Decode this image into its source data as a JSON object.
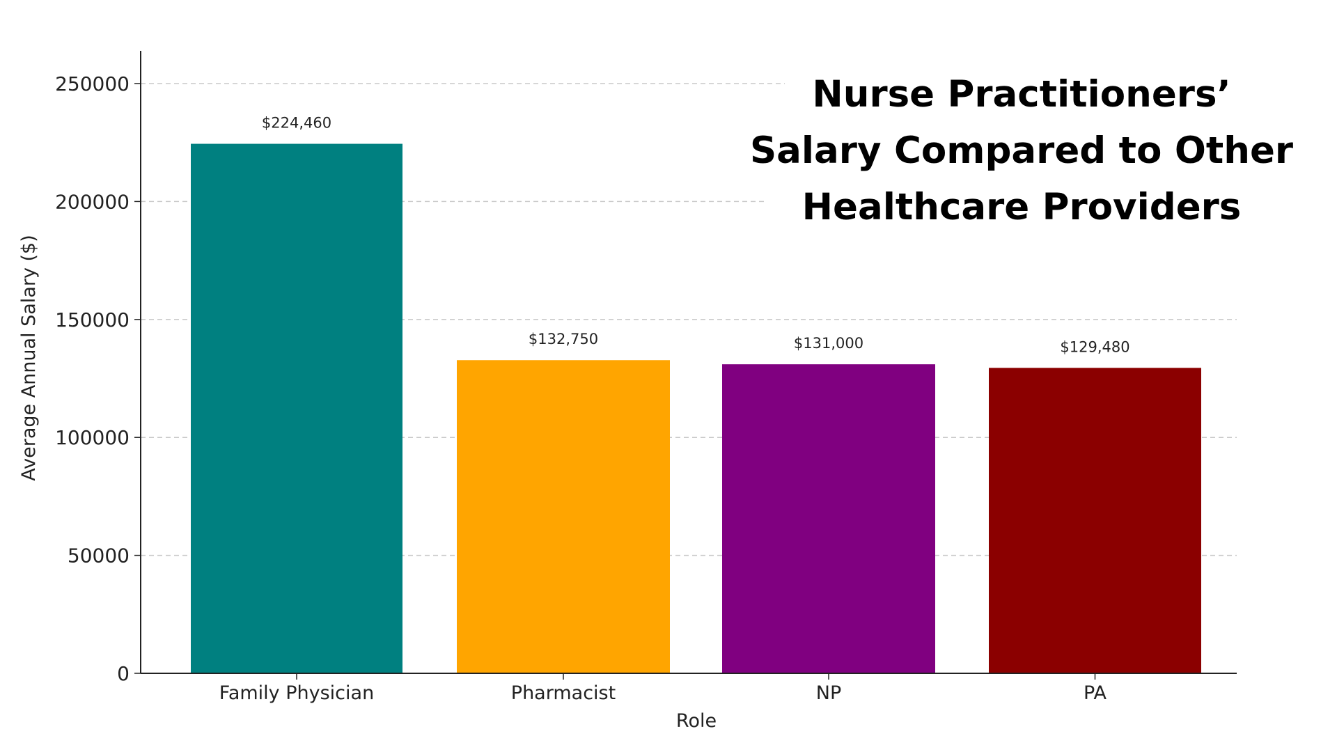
{
  "chart_data": {
    "type": "bar",
    "title_lines": [
      "Nurse Practitioners’",
      "Salary Compared to Other",
      "Healthcare Providers"
    ],
    "xlabel": "Role",
    "ylabel": "Average Annual Salary ($)",
    "categories": [
      "Family Physician",
      "Pharmacist",
      "NP",
      "PA"
    ],
    "values": [
      224460,
      132750,
      131000,
      129480
    ],
    "data_labels": [
      "$224,460",
      "$132,750",
      "$131,000",
      "$129,480"
    ],
    "colors": [
      "#008080",
      "#FFA500",
      "#800080",
      "#8B0000"
    ],
    "ylim": [
      0,
      262000
    ],
    "yticks": [
      0,
      50000,
      100000,
      150000,
      200000,
      250000
    ],
    "ytick_labels": [
      "0",
      "50000",
      "100000",
      "150000",
      "200000",
      "250000"
    ],
    "grid": "horizontal dashed",
    "legend": "none"
  }
}
